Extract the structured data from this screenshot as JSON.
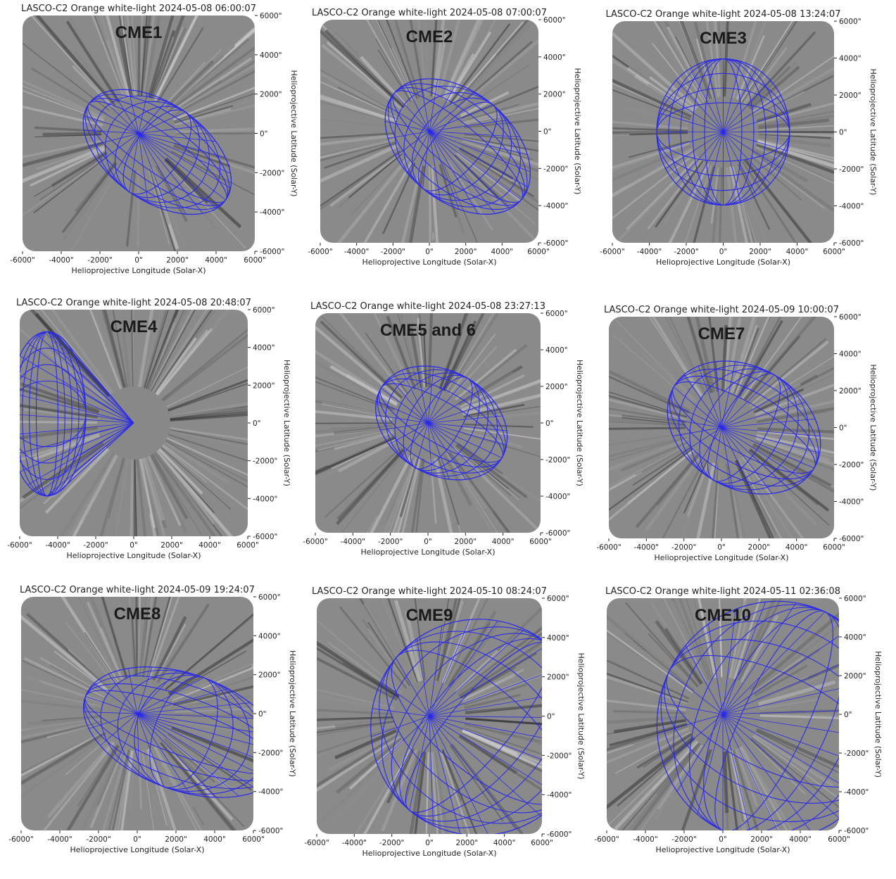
{
  "panels": [
    {
      "title": "LASCO-C2 Orange white-light 2024-05-08 06:00:07",
      "label": "CME1"
    },
    {
      "title": "LASCO-C2 Orange white-light 2024-05-08 07:00:07",
      "label": "CME2"
    },
    {
      "title": "LASCO-C2 Orange white-light 2024-05-08 13:24:07",
      "label": "CME3"
    },
    {
      "title": "LASCO-C2 Orange white-light 2024-05-08 20:48:07",
      "label": "CME4"
    },
    {
      "title": "LASCO-C2 Orange white-light 2024-05-08 23:27:13",
      "label": "CME5 and 6"
    },
    {
      "title": "LASCO-C2 Orange white-light 2024-05-09 10:00:07",
      "label": "CME7"
    },
    {
      "title": "LASCO-C2 Orange white-light 2024-05-09 19:24:07",
      "label": "CME8"
    },
    {
      "title": "LASCO-C2 Orange white-light 2024-05-10 08:24:07",
      "label": "CME9"
    },
    {
      "title": "LASCO-C2 Orange white-light 2024-05-11 02:36:08",
      "label": "CME10"
    }
  ],
  "xticks": [
    "-6000\"",
    "-4000\"",
    "-2000\"",
    "0\"",
    "2000\"",
    "4000\"",
    "6000\""
  ],
  "yticks": [
    "6000\"",
    "4000\"",
    "2000\"",
    "0\"",
    "-2000\"",
    "-4000\"",
    "-6000\""
  ],
  "xlabel": "Helioprojective Longitude (Solar-X)",
  "ylabel": "Helioprojective Latitude (Solar-Y)"
}
